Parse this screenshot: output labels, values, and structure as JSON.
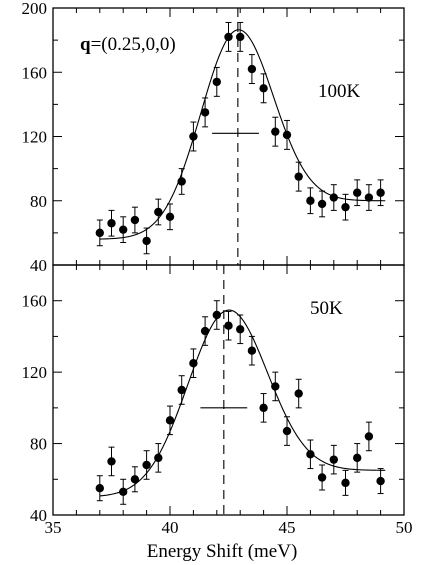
{
  "chart_data": {
    "type": "scatter",
    "xlabel": "Energy Shift (meV)",
    "xlim": [
      35,
      50
    ],
    "x_ticks": [
      "35",
      "40",
      "45",
      "50"
    ],
    "annotation_q": {
      "bold": "q",
      "rest": "=(0.25,0,0)"
    },
    "panels": [
      {
        "label": "100K",
        "ylim": [
          40,
          200
        ],
        "y_ticks": [
          "40",
          "80",
          "120",
          "160",
          "200"
        ],
        "peak_marker_x": 42.9,
        "resolution_bar": {
          "x_from": 41.8,
          "x_to": 43.8,
          "y": 122
        },
        "fit": {
          "baseline_left": 56,
          "baseline_right": 80,
          "amplitude": 118,
          "center": 42.8,
          "width": 1.55
        },
        "points": [
          {
            "x": 37.0,
            "y": 60,
            "err": 8
          },
          {
            "x": 37.5,
            "y": 66,
            "err": 8
          },
          {
            "x": 38.0,
            "y": 62,
            "err": 8
          },
          {
            "x": 38.5,
            "y": 68,
            "err": 8
          },
          {
            "x": 39.0,
            "y": 55,
            "err": 8
          },
          {
            "x": 39.5,
            "y": 73,
            "err": 8
          },
          {
            "x": 40.0,
            "y": 70,
            "err": 8
          },
          {
            "x": 40.5,
            "y": 92,
            "err": 8
          },
          {
            "x": 41.0,
            "y": 120,
            "err": 9
          },
          {
            "x": 41.5,
            "y": 135,
            "err": 9
          },
          {
            "x": 42.0,
            "y": 154,
            "err": 9
          },
          {
            "x": 42.5,
            "y": 182,
            "err": 9
          },
          {
            "x": 43.0,
            "y": 182,
            "err": 9
          },
          {
            "x": 43.5,
            "y": 162,
            "err": 9
          },
          {
            "x": 44.0,
            "y": 150,
            "err": 9
          },
          {
            "x": 44.5,
            "y": 123,
            "err": 9
          },
          {
            "x": 45.0,
            "y": 121,
            "err": 9
          },
          {
            "x": 45.5,
            "y": 95,
            "err": 9
          },
          {
            "x": 46.0,
            "y": 80,
            "err": 8
          },
          {
            "x": 46.5,
            "y": 78,
            "err": 8
          },
          {
            "x": 47.0,
            "y": 82,
            "err": 8
          },
          {
            "x": 47.5,
            "y": 76,
            "err": 8
          },
          {
            "x": 48.0,
            "y": 85,
            "err": 8
          },
          {
            "x": 48.5,
            "y": 82,
            "err": 8
          },
          {
            "x": 49.0,
            "y": 85,
            "err": 8
          }
        ]
      },
      {
        "label": "50K",
        "ylim": [
          40,
          180
        ],
        "y_ticks": [
          "40",
          "80",
          "120",
          "160"
        ],
        "peak_marker_x": 42.3,
        "resolution_bar": {
          "x_from": 41.3,
          "x_to": 43.3,
          "y": 100
        },
        "fit": {
          "baseline_left": 50,
          "baseline_right": 65,
          "amplitude": 97,
          "center": 42.4,
          "width": 1.7
        },
        "points": [
          {
            "x": 37.0,
            "y": 55,
            "err": 7
          },
          {
            "x": 37.5,
            "y": 70,
            "err": 8
          },
          {
            "x": 38.0,
            "y": 53,
            "err": 7
          },
          {
            "x": 38.5,
            "y": 60,
            "err": 7
          },
          {
            "x": 39.0,
            "y": 68,
            "err": 8
          },
          {
            "x": 39.5,
            "y": 72,
            "err": 8
          },
          {
            "x": 40.0,
            "y": 93,
            "err": 8
          },
          {
            "x": 40.5,
            "y": 110,
            "err": 8
          },
          {
            "x": 41.0,
            "y": 125,
            "err": 8
          },
          {
            "x": 41.5,
            "y": 143,
            "err": 8
          },
          {
            "x": 42.0,
            "y": 152,
            "err": 8
          },
          {
            "x": 42.5,
            "y": 146,
            "err": 8
          },
          {
            "x": 43.0,
            "y": 144,
            "err": 8
          },
          {
            "x": 43.5,
            "y": 132,
            "err": 8
          },
          {
            "x": 44.0,
            "y": 100,
            "err": 8
          },
          {
            "x": 44.5,
            "y": 112,
            "err": 8
          },
          {
            "x": 45.0,
            "y": 87,
            "err": 8
          },
          {
            "x": 45.5,
            "y": 108,
            "err": 8
          },
          {
            "x": 46.0,
            "y": 74,
            "err": 8
          },
          {
            "x": 46.5,
            "y": 61,
            "err": 7
          },
          {
            "x": 47.0,
            "y": 71,
            "err": 8
          },
          {
            "x": 47.5,
            "y": 58,
            "err": 7
          },
          {
            "x": 48.0,
            "y": 72,
            "err": 8
          },
          {
            "x": 48.5,
            "y": 84,
            "err": 8
          },
          {
            "x": 49.0,
            "y": 59,
            "err": 7
          }
        ]
      }
    ]
  }
}
